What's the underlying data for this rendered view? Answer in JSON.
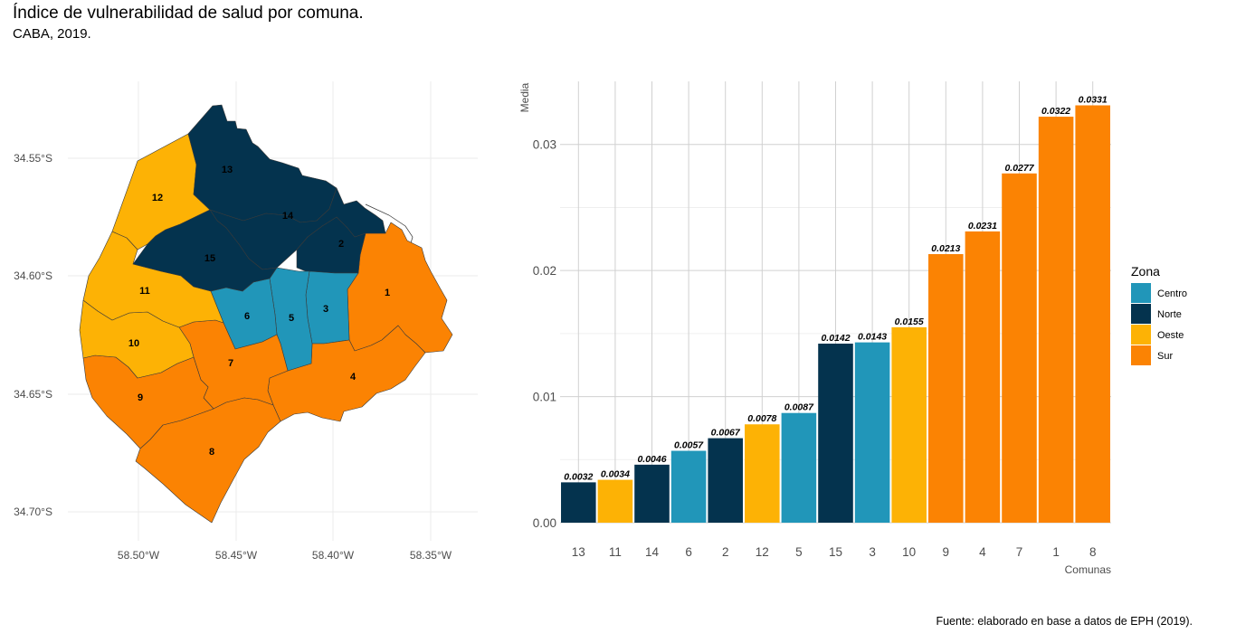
{
  "title": "Índice de vulnerabilidad de salud por comuna.",
  "subtitle": "CABA, 2019.",
  "caption": "Fuente: elaborado en base a datos de EPH (2019).",
  "colors": {
    "Centro": "#2196B9",
    "Norte": "#04334E",
    "Oeste": "#FDB205",
    "Sur": "#FB8303"
  },
  "map": {
    "lat_ticks": [
      "34.55°S",
      "34.60°S",
      "34.65°S",
      "34.70°S"
    ],
    "lon_ticks": [
      "58.50°W",
      "58.45°W",
      "58.40°W",
      "58.35°W"
    ],
    "comunas": [
      {
        "id": "1",
        "zona": "Sur"
      },
      {
        "id": "2",
        "zona": "Norte"
      },
      {
        "id": "3",
        "zona": "Centro"
      },
      {
        "id": "4",
        "zona": "Sur"
      },
      {
        "id": "5",
        "zona": "Centro"
      },
      {
        "id": "6",
        "zona": "Centro"
      },
      {
        "id": "7",
        "zona": "Sur"
      },
      {
        "id": "8",
        "zona": "Sur"
      },
      {
        "id": "9",
        "zona": "Sur"
      },
      {
        "id": "10",
        "zona": "Oeste"
      },
      {
        "id": "11",
        "zona": "Oeste"
      },
      {
        "id": "12",
        "zona": "Oeste"
      },
      {
        "id": "13",
        "zona": "Norte"
      },
      {
        "id": "14",
        "zona": "Norte"
      },
      {
        "id": "15",
        "zona": "Norte"
      }
    ]
  },
  "chart_data": {
    "type": "bar",
    "xlabel": "Comunas",
    "ylabel": "Media",
    "ylim": [
      0,
      0.035
    ],
    "y_ticks": [
      "0.00",
      "0.01",
      "0.02",
      "0.03"
    ],
    "legend_title": "Zona",
    "legend_position": "right",
    "legend_entries": [
      "Centro",
      "Norte",
      "Oeste",
      "Sur"
    ],
    "grid": true,
    "categories": [
      "13",
      "11",
      "14",
      "6",
      "2",
      "12",
      "5",
      "15",
      "3",
      "10",
      "9",
      "4",
      "7",
      "1",
      "8"
    ],
    "values": [
      0.0032,
      0.0034,
      0.0046,
      0.0057,
      0.0067,
      0.0078,
      0.0087,
      0.0142,
      0.0143,
      0.0155,
      0.0213,
      0.0231,
      0.0277,
      0.0322,
      0.0331
    ],
    "labels": [
      "0.0032",
      "0.0034",
      "0.0046",
      "0.0057",
      "0.0067",
      "0.0078",
      "0.0087",
      "0.0142",
      "0.0143",
      "0.0155",
      "0.0213",
      "0.0231",
      "0.0277",
      "0.0322",
      "0.0331"
    ],
    "zonas": [
      "Norte",
      "Oeste",
      "Norte",
      "Centro",
      "Norte",
      "Oeste",
      "Centro",
      "Norte",
      "Centro",
      "Oeste",
      "Sur",
      "Sur",
      "Sur",
      "Sur",
      "Sur"
    ]
  }
}
